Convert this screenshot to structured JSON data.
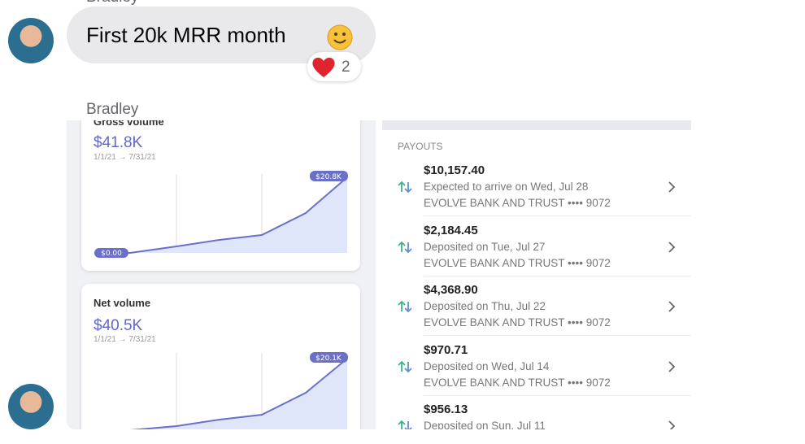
{
  "messages": [
    {
      "sender": "Bradley",
      "text": "First 20k MRR month",
      "reaction_count": 2
    },
    {
      "sender": "Bradley"
    }
  ],
  "image": {
    "gross_volume": {
      "title": "Gross volume",
      "total": "$41.8K",
      "range": "1/1/21 → 7/31/21",
      "start_label": "$0.00",
      "end_label": "$20.8K"
    },
    "net_volume": {
      "title": "Net volume",
      "total": "$40.5K",
      "range": "1/1/21 → 7/31/21",
      "end_label": "$20.1K"
    },
    "payouts": {
      "heading": "PAYOUTS",
      "items": [
        {
          "amount": "$10,157.40",
          "status": "Expected to arrive on Wed, Jul 28",
          "bank": "EVOLVE BANK AND TRUST •••• 9072"
        },
        {
          "amount": "$2,184.45",
          "status": "Deposited on Tue, Jul 27",
          "bank": "EVOLVE BANK AND TRUST •••• 9072"
        },
        {
          "amount": "$4,368.90",
          "status": "Deposited on Thu, Jul 22",
          "bank": "EVOLVE BANK AND TRUST •••• 9072"
        },
        {
          "amount": "$970.71",
          "status": "Deposited on Wed, Jul 14",
          "bank": "EVOLVE BANK AND TRUST •••• 9072"
        },
        {
          "amount": "$956.13",
          "status": "Deposited on Sun, Jul 11"
        }
      ]
    }
  }
}
